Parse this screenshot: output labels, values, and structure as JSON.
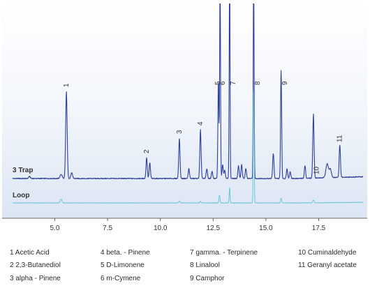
{
  "chart_data": {
    "type": "line",
    "title": "",
    "xlabel": "",
    "ylabel": "",
    "xlim": [
      3.0,
      19.6
    ],
    "x_ticks": [
      "5.0",
      "7.5",
      "10.0",
      "12.5",
      "15.0",
      "17.5"
    ],
    "x_tick_values": [
      5.0,
      7.5,
      10.0,
      12.5,
      15.0,
      17.5
    ],
    "grid": false,
    "background_gradient": true,
    "colors": {
      "trap": "#2e3f9a",
      "loop": "#6cc5d8",
      "axis": "#666666",
      "text": "#333333"
    },
    "series": [
      {
        "name": "3 Trap",
        "baseline": 0.0,
        "peaks": [
          {
            "x": 3.8,
            "h": 3,
            "w": 0.04
          },
          {
            "x": 5.3,
            "h": 6,
            "w": 0.05
          },
          {
            "x": 5.55,
            "h": 125,
            "w": 0.035
          },
          {
            "x": 5.8,
            "h": 8,
            "w": 0.04
          },
          {
            "x": 9.35,
            "h": 30,
            "w": 0.03
          },
          {
            "x": 9.5,
            "h": 22,
            "w": 0.03
          },
          {
            "x": 10.9,
            "h": 58,
            "w": 0.03
          },
          {
            "x": 11.35,
            "h": 14,
            "w": 0.03
          },
          {
            "x": 11.9,
            "h": 70,
            "w": 0.03
          },
          {
            "x": 12.2,
            "h": 14,
            "w": 0.03
          },
          {
            "x": 12.45,
            "h": 10,
            "w": 0.03
          },
          {
            "x": 12.75,
            "h": 140,
            "w": 0.025
          },
          {
            "x": 12.83,
            "h": 300,
            "w": 0.02
          },
          {
            "x": 12.95,
            "h": 20,
            "w": 0.03
          },
          {
            "x": 13.05,
            "h": 12,
            "w": 0.03
          },
          {
            "x": 13.28,
            "h": 300,
            "w": 0.02
          },
          {
            "x": 13.7,
            "h": 18,
            "w": 0.03
          },
          {
            "x": 13.85,
            "h": 20,
            "w": 0.03
          },
          {
            "x": 14.05,
            "h": 14,
            "w": 0.03
          },
          {
            "x": 14.42,
            "h": 300,
            "w": 0.02
          },
          {
            "x": 15.35,
            "h": 36,
            "w": 0.03
          },
          {
            "x": 15.72,
            "h": 155,
            "w": 0.025
          },
          {
            "x": 16.0,
            "h": 14,
            "w": 0.03
          },
          {
            "x": 16.15,
            "h": 10,
            "w": 0.03
          },
          {
            "x": 16.85,
            "h": 18,
            "w": 0.03
          },
          {
            "x": 17.25,
            "h": 92,
            "w": 0.03
          },
          {
            "x": 17.9,
            "h": 20,
            "w": 0.06
          },
          {
            "x": 18.05,
            "h": 12,
            "w": 0.05
          },
          {
            "x": 18.5,
            "h": 46,
            "w": 0.03
          }
        ]
      },
      {
        "name": "Loop",
        "baseline": 0.0,
        "peaks": [
          {
            "x": 5.3,
            "h": 10,
            "w": 0.04
          },
          {
            "x": 10.9,
            "h": 5,
            "w": 0.03
          },
          {
            "x": 11.9,
            "h": 4,
            "w": 0.03
          },
          {
            "x": 12.8,
            "h": 20,
            "w": 0.025
          },
          {
            "x": 13.28,
            "h": 40,
            "w": 0.02
          },
          {
            "x": 14.42,
            "h": 300,
            "w": 0.02
          },
          {
            "x": 15.72,
            "h": 12,
            "w": 0.025
          },
          {
            "x": 17.25,
            "h": 7,
            "w": 0.03
          }
        ]
      }
    ],
    "peak_labels": [
      {
        "text": "1",
        "x": 5.55
      },
      {
        "text": "2",
        "x": 9.35
      },
      {
        "text": "3",
        "x": 10.9
      },
      {
        "text": "4",
        "x": 11.9
      },
      {
        "text": "5",
        "x": 12.72
      },
      {
        "text": "6",
        "x": 12.95
      },
      {
        "text": "7",
        "x": 13.45
      },
      {
        "text": "8",
        "x": 14.6
      },
      {
        "text": "9",
        "x": 15.9
      },
      {
        "text": "10",
        "x": 17.4
      },
      {
        "text": "11",
        "x": 18.5
      }
    ],
    "legend": {
      "placement": "bottom",
      "columns": [
        [
          "1 Acetic Acid",
          "2 2,3-Butanediol",
          "3 alpha - Pinene"
        ],
        [
          "4 beta. - Pinene",
          "5 D-Limonene",
          "6 m-Cymene"
        ],
        [
          "7 gamma. - Terpinene",
          "8 Linalool",
          "9 Camphor"
        ],
        [
          "10 Cuminaldehyde",
          "11 Geranyl acetate"
        ]
      ]
    }
  }
}
